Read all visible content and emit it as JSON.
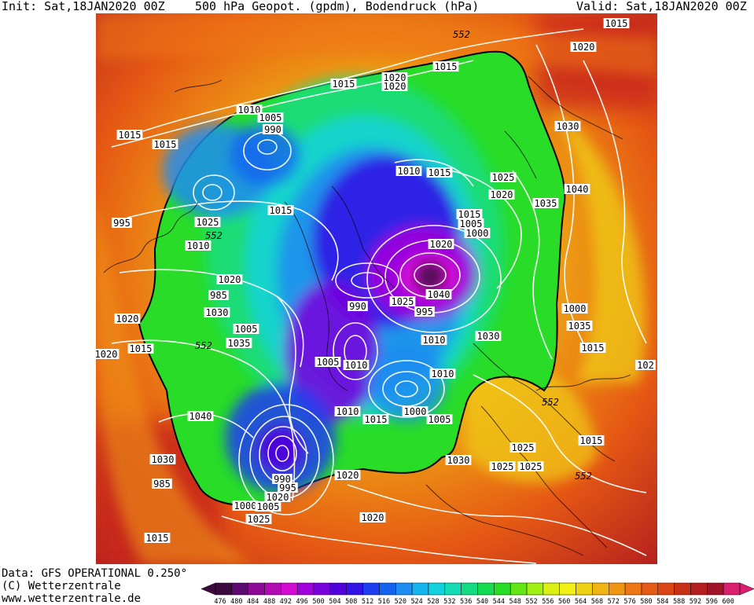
{
  "header": {
    "init": "Init: Sat,18JAN2020 00Z",
    "title": "500 hPa Geopot. (gpdm), Bodendruck (hPa)",
    "valid": "Valid: Sat,18JAN2020 00Z"
  },
  "footer": {
    "data_line": "Data: GFS OPERATIONAL 0.250°",
    "copyright": "(C) Wetterzentrale",
    "website": "www.wetterzentrale.de"
  },
  "legend": {
    "values": [
      "476",
      "480",
      "484",
      "488",
      "492",
      "496",
      "500",
      "504",
      "508",
      "512",
      "516",
      "520",
      "524",
      "528",
      "532",
      "536",
      "540",
      "544",
      "548",
      "552",
      "556",
      "560",
      "564",
      "568",
      "572",
      "576",
      "580",
      "584",
      "588",
      "592",
      "596",
      "600"
    ],
    "colors": [
      "#3c0a3c",
      "#5a0a6e",
      "#8c0a96",
      "#b40ab4",
      "#d20ad2",
      "#a000dc",
      "#7800dc",
      "#5000dc",
      "#3214e6",
      "#1e3cf0",
      "#1464f0",
      "#1e8cf0",
      "#14b4f0",
      "#14d2dc",
      "#14dcb4",
      "#14dc82",
      "#14dc50",
      "#28dc28",
      "#64e614",
      "#a0f014",
      "#dcf014",
      "#f0f014",
      "#f0d214",
      "#f0b414",
      "#f09614",
      "#f07814",
      "#e65a14",
      "#dc4614",
      "#c83214",
      "#b41e1e",
      "#a01428",
      "#dc1e6e"
    ]
  },
  "map": {
    "bg_color": "#c8281e",
    "isobar_labels": [
      {
        "text": "552",
        "italic": true
      },
      {
        "text": "1015"
      },
      {
        "text": "1020"
      },
      {
        "text": "1015"
      },
      {
        "text": "1015"
      },
      {
        "text": "1020"
      },
      {
        "text": "1020"
      },
      {
        "text": "1010"
      },
      {
        "text": "1005"
      },
      {
        "text": "990"
      },
      {
        "text": "1015"
      },
      {
        "text": "1015"
      },
      {
        "text": "1030"
      },
      {
        "text": "1010"
      },
      {
        "text": "1015"
      },
      {
        "text": "1025"
      },
      {
        "text": "1020"
      },
      {
        "text": "1040"
      },
      {
        "text": "1035"
      },
      {
        "text": "1015"
      },
      {
        "text": "1015"
      },
      {
        "text": "1005"
      },
      {
        "text": "1000"
      },
      {
        "text": "995"
      },
      {
        "text": "1025"
      },
      {
        "text": "552",
        "italic": true
      },
      {
        "text": "1010"
      },
      {
        "text": "1020"
      },
      {
        "text": "1020"
      },
      {
        "text": "985"
      },
      {
        "text": "1040"
      },
      {
        "text": "1030"
      },
      {
        "text": "990"
      },
      {
        "text": "1025"
      },
      {
        "text": "995"
      },
      {
        "text": "1000"
      },
      {
        "text": "1005"
      },
      {
        "text": "1020"
      },
      {
        "text": "1035"
      },
      {
        "text": "1015"
      },
      {
        "text": "1010"
      },
      {
        "text": "1030"
      },
      {
        "text": "552",
        "italic": true
      },
      {
        "text": "1035"
      },
      {
        "text": "1015"
      },
      {
        "text": "1005"
      },
      {
        "text": "1010"
      },
      {
        "text": "1010"
      },
      {
        "text": "1020"
      },
      {
        "text": "102"
      },
      {
        "text": "552",
        "italic": true
      },
      {
        "text": "1040"
      },
      {
        "text": "1010"
      },
      {
        "text": "1015"
      },
      {
        "text": "1000"
      },
      {
        "text": "1005"
      },
      {
        "text": "1015"
      },
      {
        "text": "1030"
      },
      {
        "text": "1030"
      },
      {
        "text": "1025"
      },
      {
        "text": "1025"
      },
      {
        "text": "1025"
      },
      {
        "text": "985"
      },
      {
        "text": "990"
      },
      {
        "text": "995"
      },
      {
        "text": "1020"
      },
      {
        "text": "1020"
      },
      {
        "text": "552",
        "italic": true
      },
      {
        "text": "1000"
      },
      {
        "text": "1005"
      },
      {
        "text": "1025"
      },
      {
        "text": "1020"
      },
      {
        "text": "1015"
      }
    ]
  }
}
